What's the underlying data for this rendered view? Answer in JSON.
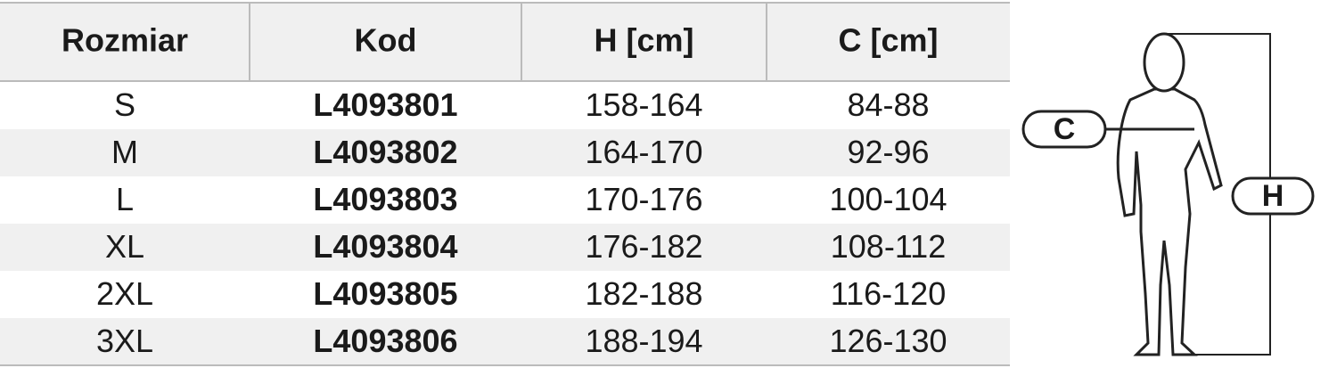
{
  "table": {
    "headers": [
      "Rozmiar",
      "Kod",
      "H [cm]",
      "C [cm]"
    ],
    "rows": [
      [
        "S",
        "L4093801",
        "158-164",
        "84-88"
      ],
      [
        "M",
        "L4093802",
        "164-170",
        "92-96"
      ],
      [
        "L",
        "L4093803",
        "170-176",
        "100-104"
      ],
      [
        "XL",
        "L4093804",
        "176-182",
        "108-112"
      ],
      [
        "2XL",
        "L4093805",
        "182-188",
        "116-120"
      ],
      [
        "3XL",
        "L4093806",
        "188-194",
        "126-130"
      ]
    ]
  },
  "diagram": {
    "chest_label": "C",
    "height_label": "H"
  }
}
